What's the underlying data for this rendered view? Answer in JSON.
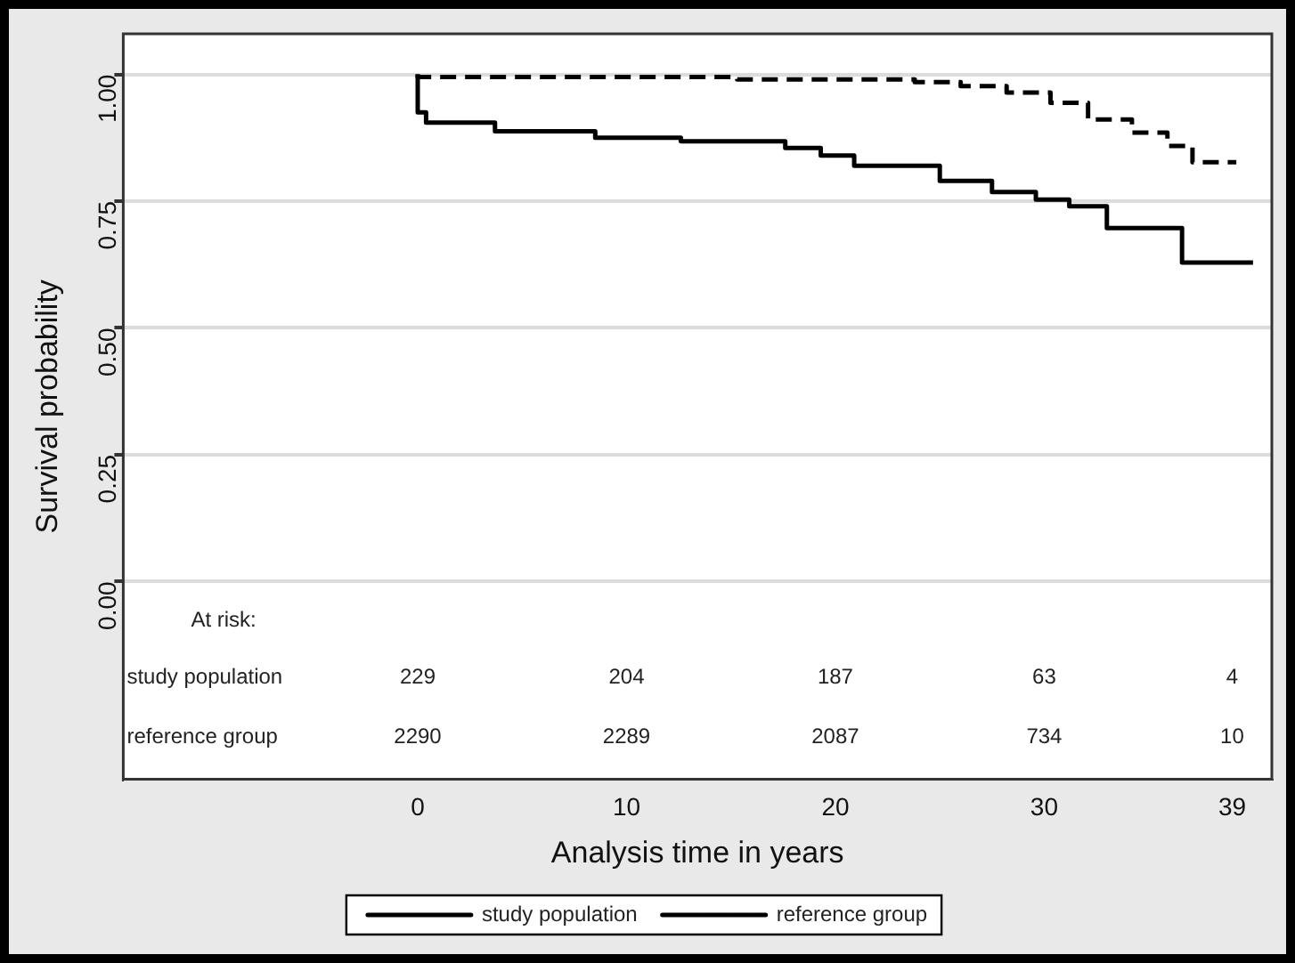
{
  "chart_data": {
    "type": "step",
    "xlabel": "Analysis time in years",
    "ylabel": "Survival probability",
    "xlim": [
      -14.1,
      40.9
    ],
    "ylim": [
      -0.39,
      1.08
    ],
    "xticks": [
      0,
      10,
      20,
      30,
      39
    ],
    "yticks": [
      {
        "value": 0,
        "label": "0.00"
      },
      {
        "value": 0.25,
        "label": "0.25"
      },
      {
        "value": 0.5,
        "label": "0.50"
      },
      {
        "value": 0.75,
        "label": "0.75"
      },
      {
        "value": 1,
        "label": "1.00"
      }
    ],
    "grid": "y",
    "legend": "bottom",
    "series": [
      {
        "name": "study population",
        "color": "#000000",
        "line_style": "solid",
        "x": [
          0,
          0.4,
          3.7,
          8.5,
          12.6,
          17.6,
          19.3,
          20.9,
          25,
          27.5,
          29.6,
          31.2,
          33,
          36.6,
          37.5,
          40
        ],
        "values": [
          1,
          0.925,
          0.905,
          0.888,
          0.875,
          0.868,
          0.855,
          0.84,
          0.82,
          0.79,
          0.768,
          0.753,
          0.74,
          0.697,
          0.629,
          0.629
        ]
      },
      {
        "name": "reference group",
        "color": "#000000",
        "line_style": "dashed",
        "x": [
          0,
          15.3,
          23.8,
          26,
          28.2,
          30.3,
          32.1,
          34.2,
          35.9,
          37.1,
          38,
          39.2
        ],
        "values": [
          1,
          0.995,
          0.99,
          0.985,
          0.977,
          0.964,
          0.944,
          0.911,
          0.885,
          0.859,
          0.827,
          0.827
        ]
      }
    ],
    "annotations": [
      "At risk:",
      "study population",
      "229",
      "204",
      "187",
      "63",
      "4",
      "reference group",
      "2290",
      "2289",
      "2087",
      "734",
      "10"
    ]
  }
}
